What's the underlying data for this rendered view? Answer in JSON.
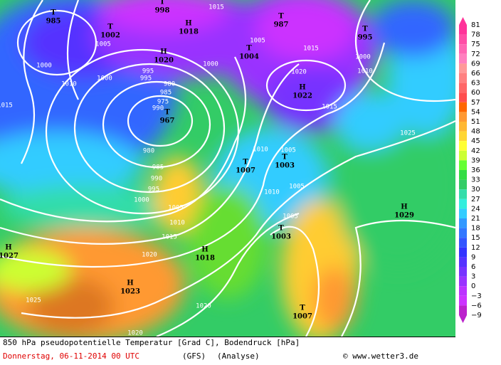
{
  "map": {
    "pressure_centers": [
      {
        "type": "T",
        "value": "985"
      },
      {
        "type": "T",
        "value": "1002"
      },
      {
        "type": "H",
        "value": "1018"
      },
      {
        "type": "T",
        "value": "998"
      },
      {
        "type": "H",
        "value": "1020"
      },
      {
        "type": "T",
        "value": "987"
      },
      {
        "type": "T",
        "value": "995"
      },
      {
        "type": "T",
        "value": "1004"
      },
      {
        "type": "H",
        "value": "1022"
      },
      {
        "type": "T",
        "value": "967"
      },
      {
        "type": "T",
        "value": "1007"
      },
      {
        "type": "T",
        "value": "1003"
      },
      {
        "type": "H",
        "value": "1029"
      },
      {
        "type": "T",
        "value": "1003"
      },
      {
        "type": "H",
        "value": "1027"
      },
      {
        "type": "H",
        "value": "1018"
      },
      {
        "type": "H",
        "value": "1023"
      },
      {
        "type": "T",
        "value": "1007"
      }
    ],
    "isobar_labels": [
      "1005",
      "1000",
      "1010",
      "1000",
      "995",
      "980",
      "985",
      "975",
      "1000",
      "1005",
      "1015",
      "1020",
      "1000",
      "1010",
      "1015",
      "1025",
      "1010",
      "1005",
      "980",
      "985",
      "990",
      "995",
      "1000",
      "1005",
      "1010",
      "1015",
      "1020",
      "1010",
      "1005",
      "1005",
      "1025",
      "1020",
      "1020",
      "1015",
      "1015",
      "995",
      "990"
    ]
  },
  "colorbar": [
    {
      "label": "81",
      "color": "#ff3399"
    },
    {
      "label": "78",
      "color": "#ff4da6"
    },
    {
      "label": "75",
      "color": "#ff66b3"
    },
    {
      "label": "72",
      "color": "#ff80bf"
    },
    {
      "label": "69",
      "color": "#ff9999"
    },
    {
      "label": "66",
      "color": "#ff8080"
    },
    {
      "label": "63",
      "color": "#ff6666"
    },
    {
      "label": "60",
      "color": "#ff4d4d"
    },
    {
      "label": "57",
      "color": "#ff6600"
    },
    {
      "label": "54",
      "color": "#ff9933"
    },
    {
      "label": "51",
      "color": "#ffb833"
    },
    {
      "label": "48",
      "color": "#ffd633"
    },
    {
      "label": "45",
      "color": "#ffff33"
    },
    {
      "label": "42",
      "color": "#ccff33"
    },
    {
      "label": "39",
      "color": "#66ff33"
    },
    {
      "label": "36",
      "color": "#33dd44"
    },
    {
      "label": "33",
      "color": "#33cc66"
    },
    {
      "label": "30",
      "color": "#33ddaa"
    },
    {
      "label": "27",
      "color": "#33eedd"
    },
    {
      "label": "24",
      "color": "#33ccff"
    },
    {
      "label": "21",
      "color": "#3399ff"
    },
    {
      "label": "18",
      "color": "#3377ff"
    },
    {
      "label": "15",
      "color": "#3355ff"
    },
    {
      "label": "12",
      "color": "#3333ff"
    },
    {
      "label": "9",
      "color": "#5533ff"
    },
    {
      "label": "6",
      "color": "#7733ff"
    },
    {
      "label": "3",
      "color": "#9933ff"
    },
    {
      "label": "0",
      "color": "#bb33ff"
    },
    {
      "label": "−3",
      "color": "#cc33ff"
    },
    {
      "label": "−6",
      "color": "#bb22cc"
    },
    {
      "label": "−9",
      "color": "#991199"
    }
  ],
  "footer": {
    "title": "850 hPa pseudopotentielle Temperatur [Grad C], Bodendruck [hPa]",
    "date": "Donnerstag, 06-11-2014  00 UTC",
    "model": "(GFS)",
    "run": "(Analyse)",
    "credit": "© www.wetter3.de"
  }
}
